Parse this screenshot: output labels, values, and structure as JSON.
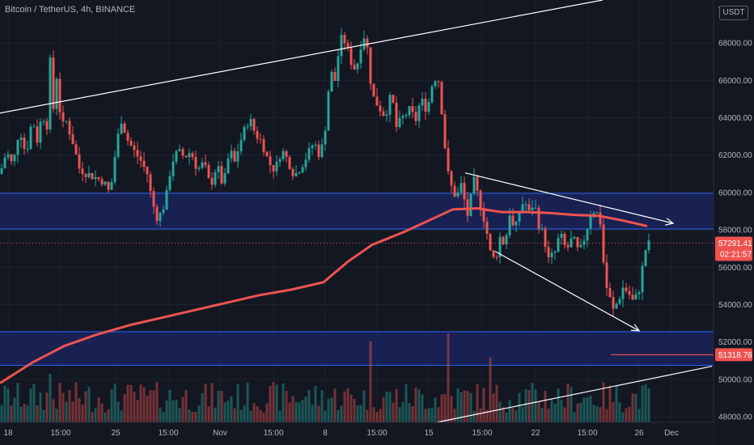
{
  "header": {
    "symbol_title": "Bitcoin / TetherUS, 4h, BINANCE",
    "currency": "USDT",
    "top_tick_fragment": "7"
  },
  "colors": {
    "background": "#131722",
    "up": "#26a69a",
    "down": "#ef5350",
    "moving_average": "#ef5350",
    "zone_fill": "#1e2a78",
    "zone_border": "#2962ff",
    "trendline": "#ffffff",
    "axis_text": "#b2b5be"
  },
  "chart_data": {
    "type": "candlestick",
    "x_tick_labels": [
      "18",
      "15:00",
      "25",
      "15:00",
      "Nov",
      "15:00",
      "8",
      "15:00",
      "15",
      "15:00",
      "22",
      "15:00",
      "26",
      "Dec"
    ],
    "y_ticks": [
      48000,
      50000,
      52000,
      54000,
      56000,
      58000,
      60000,
      62000,
      64000,
      66000,
      68000
    ],
    "y_tick_labels": [
      "48000.00",
      "50000.00",
      "52000.00",
      "54000.00",
      "56000.00",
      "58000.00",
      "60000.00",
      "62000.00",
      "64000.00",
      "66000.00",
      "68000.00"
    ],
    "ylim": [
      47700,
      70300
    ],
    "price_path": [
      [
        0,
        61000
      ],
      [
        8,
        62200
      ],
      [
        16,
        61400
      ],
      [
        24,
        63500
      ],
      [
        32,
        62000
      ],
      [
        40,
        64000
      ],
      [
        46,
        62800
      ],
      [
        52,
        64200
      ],
      [
        58,
        63600
      ],
      [
        62,
        67000
      ],
      [
        66,
        64500
      ],
      [
        70,
        66200
      ],
      [
        76,
        63500
      ],
      [
        82,
        63800
      ],
      [
        90,
        62700
      ],
      [
        98,
        61300
      ],
      [
        108,
        61000
      ],
      [
        118,
        60800
      ],
      [
        128,
        60600
      ],
      [
        136,
        59900
      ],
      [
        144,
        62600
      ],
      [
        150,
        63900
      ],
      [
        158,
        62800
      ],
      [
        166,
        62200
      ],
      [
        174,
        61700
      ],
      [
        182,
        61000
      ],
      [
        188,
        59500
      ],
      [
        194,
        58700
      ],
      [
        200,
        58900
      ],
      [
        206,
        59900
      ],
      [
        212,
        61600
      ],
      [
        220,
        62200
      ],
      [
        228,
        61900
      ],
      [
        236,
        62200
      ],
      [
        244,
        61200
      ],
      [
        252,
        61600
      ],
      [
        260,
        60300
      ],
      [
        268,
        61500
      ],
      [
        276,
        60300
      ],
      [
        284,
        62300
      ],
      [
        290,
        61600
      ],
      [
        296,
        62600
      ],
      [
        302,
        63300
      ],
      [
        308,
        64000
      ],
      [
        316,
        63100
      ],
      [
        324,
        62700
      ],
      [
        332,
        61600
      ],
      [
        340,
        61200
      ],
      [
        348,
        62300
      ],
      [
        356,
        61700
      ],
      [
        364,
        60900
      ],
      [
        372,
        61400
      ],
      [
        380,
        62000
      ],
      [
        388,
        62700
      ],
      [
        394,
        62100
      ],
      [
        400,
        62600
      ],
      [
        404,
        64400
      ],
      [
        408,
        66500
      ],
      [
        414,
        66000
      ],
      [
        420,
        68000
      ],
      [
        424,
        68400
      ],
      [
        428,
        67800
      ],
      [
        434,
        67000
      ],
      [
        440,
        66500
      ],
      [
        446,
        67900
      ],
      [
        452,
        68600
      ],
      [
        456,
        66800
      ],
      [
        460,
        65200
      ],
      [
        468,
        64600
      ],
      [
        476,
        64100
      ],
      [
        484,
        65300
      ],
      [
        490,
        63500
      ],
      [
        498,
        64000
      ],
      [
        506,
        64400
      ],
      [
        514,
        63900
      ],
      [
        520,
        65000
      ],
      [
        528,
        64400
      ],
      [
        536,
        66200
      ],
      [
        542,
        66000
      ],
      [
        548,
        63600
      ],
      [
        552,
        61300
      ],
      [
        558,
        60300
      ],
      [
        564,
        59700
      ],
      [
        570,
        60400
      ],
      [
        578,
        58800
      ],
      [
        586,
        60600
      ],
      [
        594,
        59300
      ],
      [
        600,
        58300
      ],
      [
        606,
        56800
      ],
      [
        612,
        56300
      ],
      [
        618,
        57600
      ],
      [
        624,
        57200
      ],
      [
        630,
        58900
      ],
      [
        636,
        57800
      ],
      [
        642,
        59000
      ],
      [
        648,
        59600
      ],
      [
        654,
        58900
      ],
      [
        660,
        59500
      ],
      [
        666,
        58300
      ],
      [
        672,
        57700
      ],
      [
        678,
        56400
      ],
      [
        686,
        56800
      ],
      [
        692,
        57800
      ],
      [
        700,
        56900
      ],
      [
        708,
        57600
      ],
      [
        716,
        56700
      ],
      [
        724,
        57800
      ],
      [
        730,
        58900
      ],
      [
        736,
        59100
      ],
      [
        742,
        58400
      ],
      [
        748,
        55200
      ],
      [
        752,
        54600
      ],
      [
        758,
        53700
      ],
      [
        764,
        54200
      ],
      [
        770,
        54900
      ],
      [
        776,
        54700
      ],
      [
        782,
        54200
      ],
      [
        788,
        54500
      ],
      [
        792,
        55200
      ],
      [
        796,
        56700
      ],
      [
        800,
        57200
      ],
      [
        804,
        57291
      ]
    ],
    "moving_average": [
      [
        0,
        49800
      ],
      [
        40,
        50900
      ],
      [
        80,
        51800
      ],
      [
        120,
        52400
      ],
      [
        160,
        52900
      ],
      [
        200,
        53300
      ],
      [
        240,
        53700
      ],
      [
        280,
        54100
      ],
      [
        320,
        54500
      ],
      [
        360,
        54800
      ],
      [
        400,
        55200
      ],
      [
        430,
        56300
      ],
      [
        460,
        57200
      ],
      [
        500,
        57900
      ],
      [
        540,
        58700
      ],
      [
        560,
        59100
      ],
      [
        590,
        59150
      ],
      [
        620,
        58950
      ],
      [
        650,
        58950
      ],
      [
        680,
        58900
      ],
      [
        710,
        58800
      ],
      [
        740,
        58750
      ],
      [
        770,
        58500
      ],
      [
        800,
        58200
      ]
    ],
    "horizontal_zones": [
      {
        "top": 59950,
        "bottom": 58050
      },
      {
        "top": 52550,
        "bottom": 50750
      }
    ],
    "trendlines": [
      {
        "from": [
          0,
          64250
        ],
        "to": [
          745,
          70300
        ],
        "arrow": false
      },
      {
        "from": [
          575,
          61050
        ],
        "to": [
          832,
          58350
        ],
        "arrow": true
      },
      {
        "from": [
          612,
          56850
        ],
        "to": [
          790,
          52600
        ],
        "arrow": true
      },
      {
        "from": [
          540,
          47700
        ],
        "to": [
          880,
          50700
        ],
        "arrow": false
      }
    ],
    "level_line": {
      "value": 51318.76,
      "x_from": 755
    },
    "current_price_line": 57291.41,
    "price_labels": [
      {
        "text": "57291.41",
        "subtext": "02:21:57",
        "value": 57291.41,
        "color": "#ef5350"
      },
      {
        "text": "51318.76",
        "value": 51318.76,
        "color": "#ef5350"
      }
    ],
    "volume_spikes": [
      [
        457,
        100
      ],
      [
        553,
        110
      ],
      [
        607,
        80
      ],
      [
        748,
        100
      ],
      [
        62,
        60
      ],
      [
        185,
        40
      ]
    ]
  }
}
